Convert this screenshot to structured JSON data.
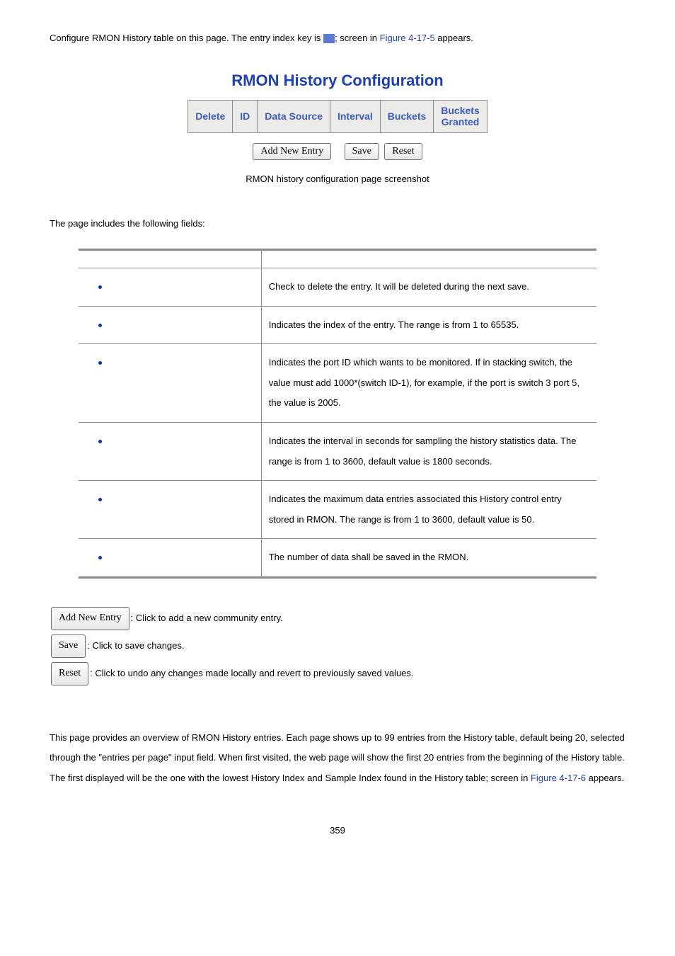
{
  "intro": {
    "prefix": "Configure RMON History table on this page. The entry index key is ",
    "mid": "; screen in ",
    "figref": "Figure 4-17-5",
    "suffix": " appears."
  },
  "config_heading": "RMON History Configuration",
  "config_headers": {
    "delete": "Delete",
    "id": "ID",
    "datasource": "Data Source",
    "interval": "Interval",
    "buckets": "Buckets",
    "buckets_granted_l1": "Buckets",
    "buckets_granted_l2": "Granted"
  },
  "buttons": {
    "add": "Add New Entry",
    "save": "Save",
    "reset": "Reset"
  },
  "caption": "RMON history configuration page screenshot",
  "fields_lead": "The page includes the following fields:",
  "fields": {
    "delete": "Check to delete the entry. It will be deleted during the next save.",
    "id": "Indicates the index of the entry. The range is from 1 to 65535.",
    "datasource": "Indicates the port ID which wants to be monitored. If in stacking switch, the value must add 1000*(switch ID-1), for example, if the port is switch 3 port 5, the value is 2005.",
    "interval": "Indicates the interval in seconds for sampling the history statistics data. The range is from 1 to 3600, default value is 1800 seconds.",
    "buckets": "Indicates the maximum data entries associated this History control entry stored in RMON. The range is from 1 to 3600, default value is 50.",
    "buckets_granted": "The number of data shall be saved in the RMON."
  },
  "btn_desc": {
    "add": ": Click to add a new community entry.",
    "save": ": Click to save changes.",
    "reset": ": Click to undo any changes made locally and revert to previously saved values."
  },
  "overview": {
    "p1a": "This page provides an overview of RMON History entries. Each page shows up to 99 entries from the History table, default being 20, selected through the \"entries per page\" input field. When first visited, the web page will show the first 20 entries from the beginning of the History table. The first displayed will be the one with the lowest History Index and Sample Index found in the History table; screen in ",
    "figref": "Figure 4-17-6",
    "p1b": " appears."
  },
  "pagenum": "359"
}
